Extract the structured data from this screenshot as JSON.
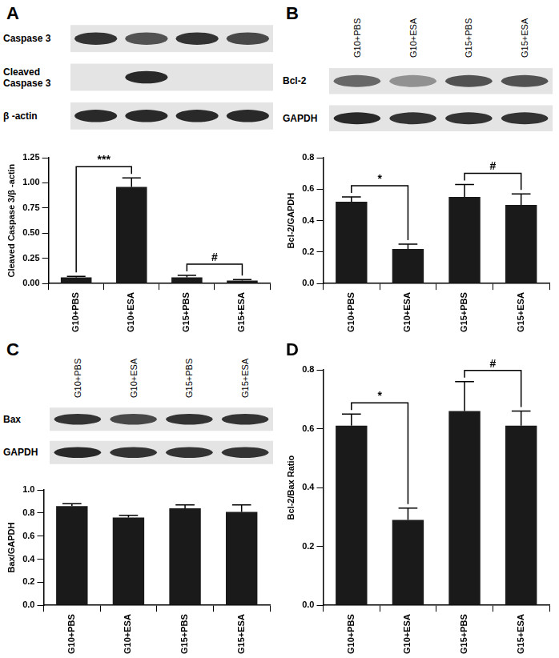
{
  "chart_data": [
    {
      "panel": "A",
      "type": "bar",
      "categories": [
        "G10+PBS",
        "G10+ESA",
        "G15+PBS",
        "G15+ESA"
      ],
      "values": [
        0.06,
        0.96,
        0.06,
        0.03
      ],
      "errors": [
        0.01,
        0.09,
        0.02,
        0.01
      ],
      "color": "#1a1a1a",
      "ylabel": "Cleaved Caspase 3/β -actin",
      "ylim": [
        0,
        1.25
      ],
      "yticks": [
        {
          "value": 0,
          "label": "0.00"
        },
        0.25,
        {
          "value": 0.5,
          "label": "0.50"
        },
        0.75,
        {
          "value": 1,
          "label": "1.00"
        },
        1.25
      ],
      "grid": false,
      "annotations": [
        {
          "from": "G10+PBS",
          "to": "G10+ESA",
          "text": "***"
        },
        {
          "from": "G15+PBS",
          "to": "G15+ESA",
          "text": "#"
        }
      ],
      "blot": {
        "rows": [
          {
            "label": [
              "Caspase 3"
            ],
            "bands": [
              0.85,
              0.7,
              0.85,
              0.75
            ]
          },
          {
            "label": [
              "Cleaved",
              "Caspase 3"
            ],
            "bands": [
              0,
              0.9,
              0,
              0
            ]
          },
          {
            "label": [
              "β -actin"
            ],
            "bands": [
              0.9,
              0.9,
              0.9,
              0.9
            ]
          }
        ]
      }
    },
    {
      "panel": "B",
      "type": "bar",
      "categories": [
        "G10+PBS",
        "G10+ESA",
        "G15+PBS",
        "G15+ESA"
      ],
      "values": [
        0.52,
        0.22,
        0.55,
        0.5
      ],
      "errors": [
        0.03,
        0.03,
        0.08,
        0.07
      ],
      "color": "#1a1a1a",
      "ylabel": "Bcl-2/GAPDH",
      "ylim": [
        0,
        0.8
      ],
      "yticks": [
        {
          "value": 0,
          "label": "0.0"
        },
        0.2,
        0.4,
        0.6,
        0.8
      ],
      "grid": false,
      "annotations": [
        {
          "from": "G10+PBS",
          "to": "G10+ESA",
          "text": "*"
        },
        {
          "from": "G15+PBS",
          "to": "G15+ESA",
          "text": "#"
        }
      ],
      "blot": {
        "lanes": [
          "G10+PBS",
          "G10+ESA",
          "G15+PBS",
          "G15+ESA"
        ],
        "rows": [
          {
            "label": [
              "Bcl-2"
            ],
            "bands": [
              0.6,
              0.4,
              0.7,
              0.7
            ]
          },
          {
            "label": [
              "GAPDH"
            ],
            "bands": [
              0.9,
              0.85,
              0.85,
              0.85
            ]
          }
        ]
      }
    },
    {
      "panel": "C",
      "type": "bar",
      "categories": [
        "G10+PBS",
        "G10+ESA",
        "G15+PBS",
        "G15+ESA"
      ],
      "values": [
        0.86,
        0.76,
        0.84,
        0.81
      ],
      "errors": [
        0.02,
        0.02,
        0.03,
        0.06
      ],
      "color": "#1a1a1a",
      "ylabel": "Bax/GAPDH",
      "ylim": [
        0,
        1
      ],
      "yticks": [
        {
          "value": 0,
          "label": "0.0"
        },
        0.2,
        0.4,
        0.6,
        0.8,
        {
          "value": 1,
          "label": "1.0"
        }
      ],
      "grid": false,
      "annotations": [],
      "blot": {
        "lanes": [
          "G10+PBS",
          "G10+ESA",
          "G15+PBS",
          "G15+ESA"
        ],
        "rows": [
          {
            "label": [
              "Bax"
            ],
            "bands": [
              0.85,
              0.75,
              0.85,
              0.85
            ]
          },
          {
            "label": [
              "GAPDH"
            ],
            "bands": [
              0.9,
              0.85,
              0.85,
              0.85
            ]
          }
        ]
      }
    },
    {
      "panel": "D",
      "type": "bar",
      "categories": [
        "G10+PBS",
        "G10+ESA",
        "G15+PBS",
        "G15+ESA"
      ],
      "values": [
        0.61,
        0.29,
        0.66,
        0.61
      ],
      "errors": [
        0.04,
        0.04,
        0.1,
        0.05
      ],
      "color": "#1a1a1a",
      "ylabel": "Bcl-2/Bax Ratio",
      "ylim": [
        0,
        0.8
      ],
      "yticks": [
        {
          "value": 0,
          "label": "0.0"
        },
        0.2,
        0.4,
        0.6,
        0.8
      ],
      "grid": false,
      "annotations": [
        {
          "from": "G10+PBS",
          "to": "G10+ESA",
          "text": "*"
        },
        {
          "from": "G15+PBS",
          "to": "G15+ESA",
          "text": "#"
        }
      ]
    }
  ]
}
